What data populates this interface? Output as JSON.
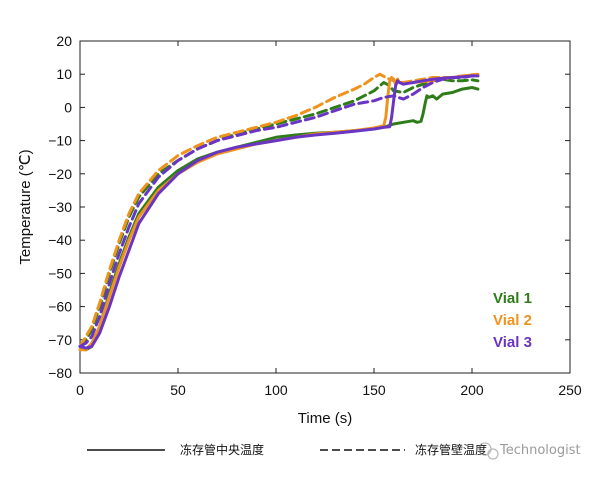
{
  "chart_data": {
    "type": "line",
    "xlabel": "Time (s)",
    "ylabel": "Temperature (℃)",
    "xlim": [
      0,
      250
    ],
    "ylim": [
      -80,
      20
    ],
    "xticks": [
      "0",
      "50",
      "100",
      "150",
      "200",
      "250"
    ],
    "yticks": [
      "20",
      "10",
      "0",
      "−10",
      "−20",
      "−30",
      "−40",
      "−50",
      "−60",
      "−70",
      "−80"
    ],
    "grid": false,
    "legend_position": "right",
    "series": [
      {
        "name": "Vial 1",
        "color": "#2e7d1a",
        "center": [
          [
            0,
            -72
          ],
          [
            3,
            -73
          ],
          [
            6,
            -72
          ],
          [
            10,
            -66
          ],
          [
            15,
            -56
          ],
          [
            20,
            -47
          ],
          [
            25,
            -39
          ],
          [
            30,
            -32
          ],
          [
            40,
            -24
          ],
          [
            50,
            -19
          ],
          [
            60,
            -15.5
          ],
          [
            70,
            -13.5
          ],
          [
            80,
            -12
          ],
          [
            90,
            -10.5
          ],
          [
            100,
            -9
          ],
          [
            110,
            -8.3
          ],
          [
            120,
            -7.8
          ],
          [
            130,
            -7.5
          ],
          [
            140,
            -7
          ],
          [
            150,
            -6.5
          ],
          [
            155,
            -6
          ],
          [
            160,
            -5
          ],
          [
            165,
            -4.5
          ],
          [
            170,
            -4
          ],
          [
            172,
            -4.5
          ],
          [
            174,
            -4.2
          ],
          [
            175,
            -2
          ],
          [
            176,
            1
          ],
          [
            177,
            3.5
          ],
          [
            178,
            3
          ],
          [
            180,
            3.5
          ],
          [
            182,
            2.5
          ],
          [
            185,
            4
          ],
          [
            190,
            4.5
          ],
          [
            195,
            5.5
          ],
          [
            200,
            6
          ],
          [
            203,
            5.5
          ]
        ],
        "wall": [
          [
            0,
            -72
          ],
          [
            3,
            -70
          ],
          [
            6,
            -67
          ],
          [
            10,
            -60
          ],
          [
            15,
            -50
          ],
          [
            20,
            -41
          ],
          [
            25,
            -33
          ],
          [
            30,
            -27
          ],
          [
            40,
            -20
          ],
          [
            50,
            -16
          ],
          [
            60,
            -12.5
          ],
          [
            70,
            -10
          ],
          [
            80,
            -8
          ],
          [
            90,
            -6.5
          ],
          [
            100,
            -5
          ],
          [
            110,
            -3.5
          ],
          [
            120,
            -2
          ],
          [
            130,
            0
          ],
          [
            140,
            2
          ],
          [
            150,
            5
          ],
          [
            152,
            6
          ],
          [
            155,
            7.5
          ],
          [
            158,
            6.5
          ],
          [
            160,
            5
          ],
          [
            165,
            4.5
          ],
          [
            170,
            6
          ],
          [
            175,
            7
          ],
          [
            180,
            8
          ],
          [
            185,
            8.5
          ],
          [
            190,
            8
          ],
          [
            195,
            8
          ],
          [
            200,
            8.3
          ],
          [
            203,
            8
          ]
        ]
      },
      {
        "name": "Vial 2",
        "color": "#f0921e",
        "center": [
          [
            0,
            -73
          ],
          [
            3,
            -73
          ],
          [
            6,
            -71
          ],
          [
            10,
            -66
          ],
          [
            15,
            -57
          ],
          [
            20,
            -48
          ],
          [
            25,
            -40
          ],
          [
            30,
            -33
          ],
          [
            40,
            -25
          ],
          [
            50,
            -20
          ],
          [
            60,
            -16.5
          ],
          [
            70,
            -14
          ],
          [
            80,
            -12.5
          ],
          [
            90,
            -11
          ],
          [
            100,
            -10
          ],
          [
            110,
            -9
          ],
          [
            120,
            -8
          ],
          [
            130,
            -7.5
          ],
          [
            140,
            -7
          ],
          [
            150,
            -6.2
          ],
          [
            155,
            -5.5
          ],
          [
            156,
            -3
          ],
          [
            157,
            3
          ],
          [
            158,
            8
          ],
          [
            159,
            9
          ],
          [
            160,
            8.5
          ],
          [
            161,
            7
          ],
          [
            162,
            8.5
          ],
          [
            163,
            7.5
          ],
          [
            165,
            7.5
          ],
          [
            170,
            7.5
          ],
          [
            175,
            7.8
          ],
          [
            180,
            8
          ],
          [
            185,
            8.5
          ],
          [
            190,
            9
          ],
          [
            195,
            9.3
          ],
          [
            200,
            9.8
          ],
          [
            203,
            9.5
          ]
        ],
        "wall": [
          [
            0,
            -72
          ],
          [
            3,
            -69
          ],
          [
            6,
            -66
          ],
          [
            10,
            -59
          ],
          [
            15,
            -49
          ],
          [
            20,
            -40
          ],
          [
            25,
            -32
          ],
          [
            30,
            -26
          ],
          [
            40,
            -19
          ],
          [
            50,
            -14.5
          ],
          [
            60,
            -11.5
          ],
          [
            70,
            -9
          ],
          [
            80,
            -7.5
          ],
          [
            90,
            -6
          ],
          [
            100,
            -4.5
          ],
          [
            110,
            -2.5
          ],
          [
            120,
            0
          ],
          [
            130,
            3
          ],
          [
            140,
            5.5
          ],
          [
            145,
            7
          ],
          [
            150,
            9
          ],
          [
            153,
            10
          ],
          [
            156,
            9
          ],
          [
            160,
            8
          ],
          [
            165,
            7.5
          ],
          [
            170,
            8
          ],
          [
            175,
            8.5
          ],
          [
            180,
            9
          ],
          [
            185,
            9
          ],
          [
            190,
            9
          ],
          [
            195,
            9.5
          ],
          [
            200,
            9.8
          ],
          [
            203,
            10
          ]
        ]
      },
      {
        "name": "Vial 3",
        "color": "#6a35c4",
        "center": [
          [
            0,
            -72
          ],
          [
            3,
            -72.5
          ],
          [
            6,
            -72
          ],
          [
            10,
            -68
          ],
          [
            15,
            -60
          ],
          [
            20,
            -51
          ],
          [
            25,
            -43
          ],
          [
            30,
            -35
          ],
          [
            40,
            -26
          ],
          [
            50,
            -20
          ],
          [
            60,
            -16
          ],
          [
            70,
            -13.5
          ],
          [
            80,
            -12
          ],
          [
            90,
            -11
          ],
          [
            100,
            -10
          ],
          [
            110,
            -9
          ],
          [
            120,
            -8.3
          ],
          [
            130,
            -7.8
          ],
          [
            140,
            -7.2
          ],
          [
            150,
            -6.5
          ],
          [
            155,
            -6
          ],
          [
            158,
            -5.8
          ],
          [
            159,
            -3
          ],
          [
            160,
            2
          ],
          [
            161,
            6.5
          ],
          [
            162,
            8
          ],
          [
            163,
            7.5
          ],
          [
            165,
            7
          ],
          [
            170,
            7.5
          ],
          [
            175,
            8
          ],
          [
            180,
            8.5
          ],
          [
            185,
            8.8
          ],
          [
            190,
            9
          ],
          [
            195,
            9.2
          ],
          [
            200,
            9.5
          ],
          [
            203,
            9.5
          ]
        ],
        "wall": [
          [
            0,
            -72
          ],
          [
            3,
            -71
          ],
          [
            6,
            -69
          ],
          [
            10,
            -63
          ],
          [
            15,
            -53
          ],
          [
            20,
            -44
          ],
          [
            25,
            -36
          ],
          [
            30,
            -29
          ],
          [
            40,
            -21
          ],
          [
            50,
            -16
          ],
          [
            60,
            -12.5
          ],
          [
            70,
            -10
          ],
          [
            80,
            -8.5
          ],
          [
            90,
            -7
          ],
          [
            100,
            -6
          ],
          [
            110,
            -4.5
          ],
          [
            120,
            -3
          ],
          [
            130,
            -1
          ],
          [
            140,
            1
          ],
          [
            150,
            2
          ],
          [
            155,
            3
          ],
          [
            160,
            3.5
          ],
          [
            165,
            2.5
          ],
          [
            170,
            4
          ],
          [
            175,
            6
          ],
          [
            180,
            7.5
          ],
          [
            185,
            8.5
          ],
          [
            190,
            9
          ],
          [
            195,
            9
          ],
          [
            200,
            9.5
          ],
          [
            203,
            9.5
          ]
        ]
      }
    ],
    "line_styles": [
      {
        "name": "冻存管中央温度",
        "dash": "solid"
      },
      {
        "name": "冻存管壁温度",
        "dash": "dashed"
      }
    ]
  },
  "legend_notes": {
    "solid_label": "冻存管中央温度",
    "dashed_label": "冻存管壁温度"
  },
  "watermark": {
    "text": "Technologist",
    "icon": "wechat-icon"
  }
}
